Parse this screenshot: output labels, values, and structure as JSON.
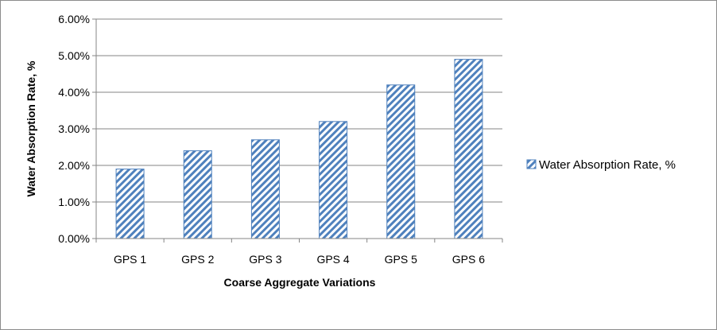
{
  "chart_data": {
    "type": "bar",
    "categories": [
      "GPS 1",
      "GPS 2",
      "GPS 3",
      "GPS 4",
      "GPS 5",
      "GPS 6"
    ],
    "series": [
      {
        "name": "Water Absorption Rate, %",
        "values": [
          0.019,
          0.024,
          0.027,
          0.032,
          0.042,
          0.049
        ]
      }
    ],
    "ylim": [
      0,
      0.06
    ],
    "yticks": [
      "0.00%",
      "1.00%",
      "2.00%",
      "3.00%",
      "4.00%",
      "5.00%",
      "6.00%"
    ],
    "xlabel": "Coarse Aggregate Variations",
    "ylabel": "Water Absorption Rate, %",
    "grid": true,
    "legend": "right",
    "colors": {
      "bar_hatch": "#4f81bd",
      "gridline": "#868686"
    }
  }
}
